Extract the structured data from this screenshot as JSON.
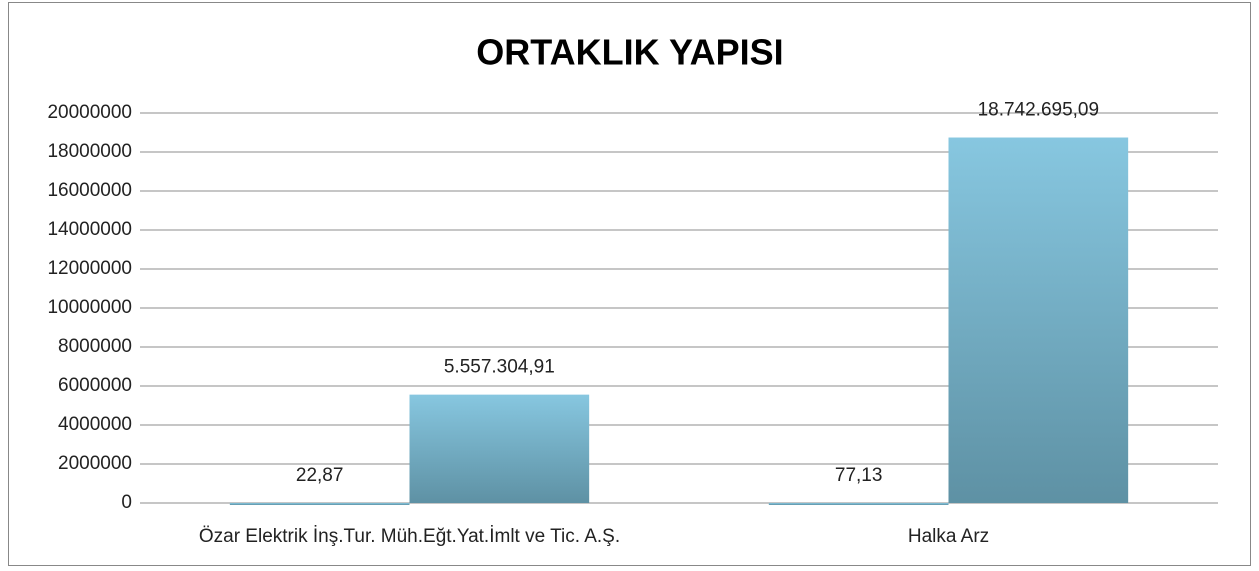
{
  "chart_data": {
    "type": "bar",
    "title": "ORTAKLIK YAPISI",
    "categories": [
      "Özar Elektrik İnş.Tur. Müh.Eğt.Yat.İmlt ve Tic. A.Ş.",
      "Halka Arz"
    ],
    "series": [
      {
        "color": "#6fa9bf",
        "values": [
          22.87,
          77.13
        ],
        "value_labels": [
          "22,87",
          "77,13"
        ]
      },
      {
        "color": "#6fa9bf",
        "values": [
          5557304.91,
          18742695.09
        ],
        "value_labels": [
          "5.557.304,91",
          "18.742.695,09"
        ]
      }
    ],
    "ylim": [
      0,
      20000000
    ],
    "yticks": [
      0,
      2000000,
      4000000,
      6000000,
      8000000,
      10000000,
      12000000,
      14000000,
      16000000,
      18000000,
      20000000
    ],
    "grid": true
  }
}
